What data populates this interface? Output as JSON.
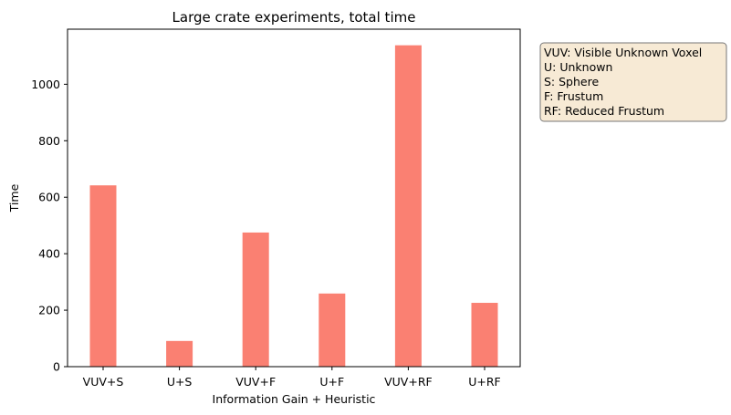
{
  "chart_data": {
    "type": "bar",
    "title": "Large crate experiments, total time",
    "xlabel": "Information Gain + Heuristic",
    "ylabel": "Time",
    "categories": [
      "VUV+S",
      "U+S",
      "VUV+F",
      "U+F",
      "VUV+RF",
      "U+RF"
    ],
    "values": [
      642,
      91,
      475,
      259,
      1138,
      226
    ],
    "ylim": [
      0,
      1195
    ],
    "yticks": [
      0,
      200,
      400,
      600,
      800,
      1000
    ],
    "bar_color": "#fa8072",
    "grid": false,
    "legend_placement": "outside-top-right",
    "annotation": [
      "VUV: Visible Unknown Voxel",
      "U: Unknown",
      "S: Sphere",
      "F: Frustum",
      "RF: Reduced Frustum"
    ],
    "annotation_bg": "#f7ead5"
  }
}
